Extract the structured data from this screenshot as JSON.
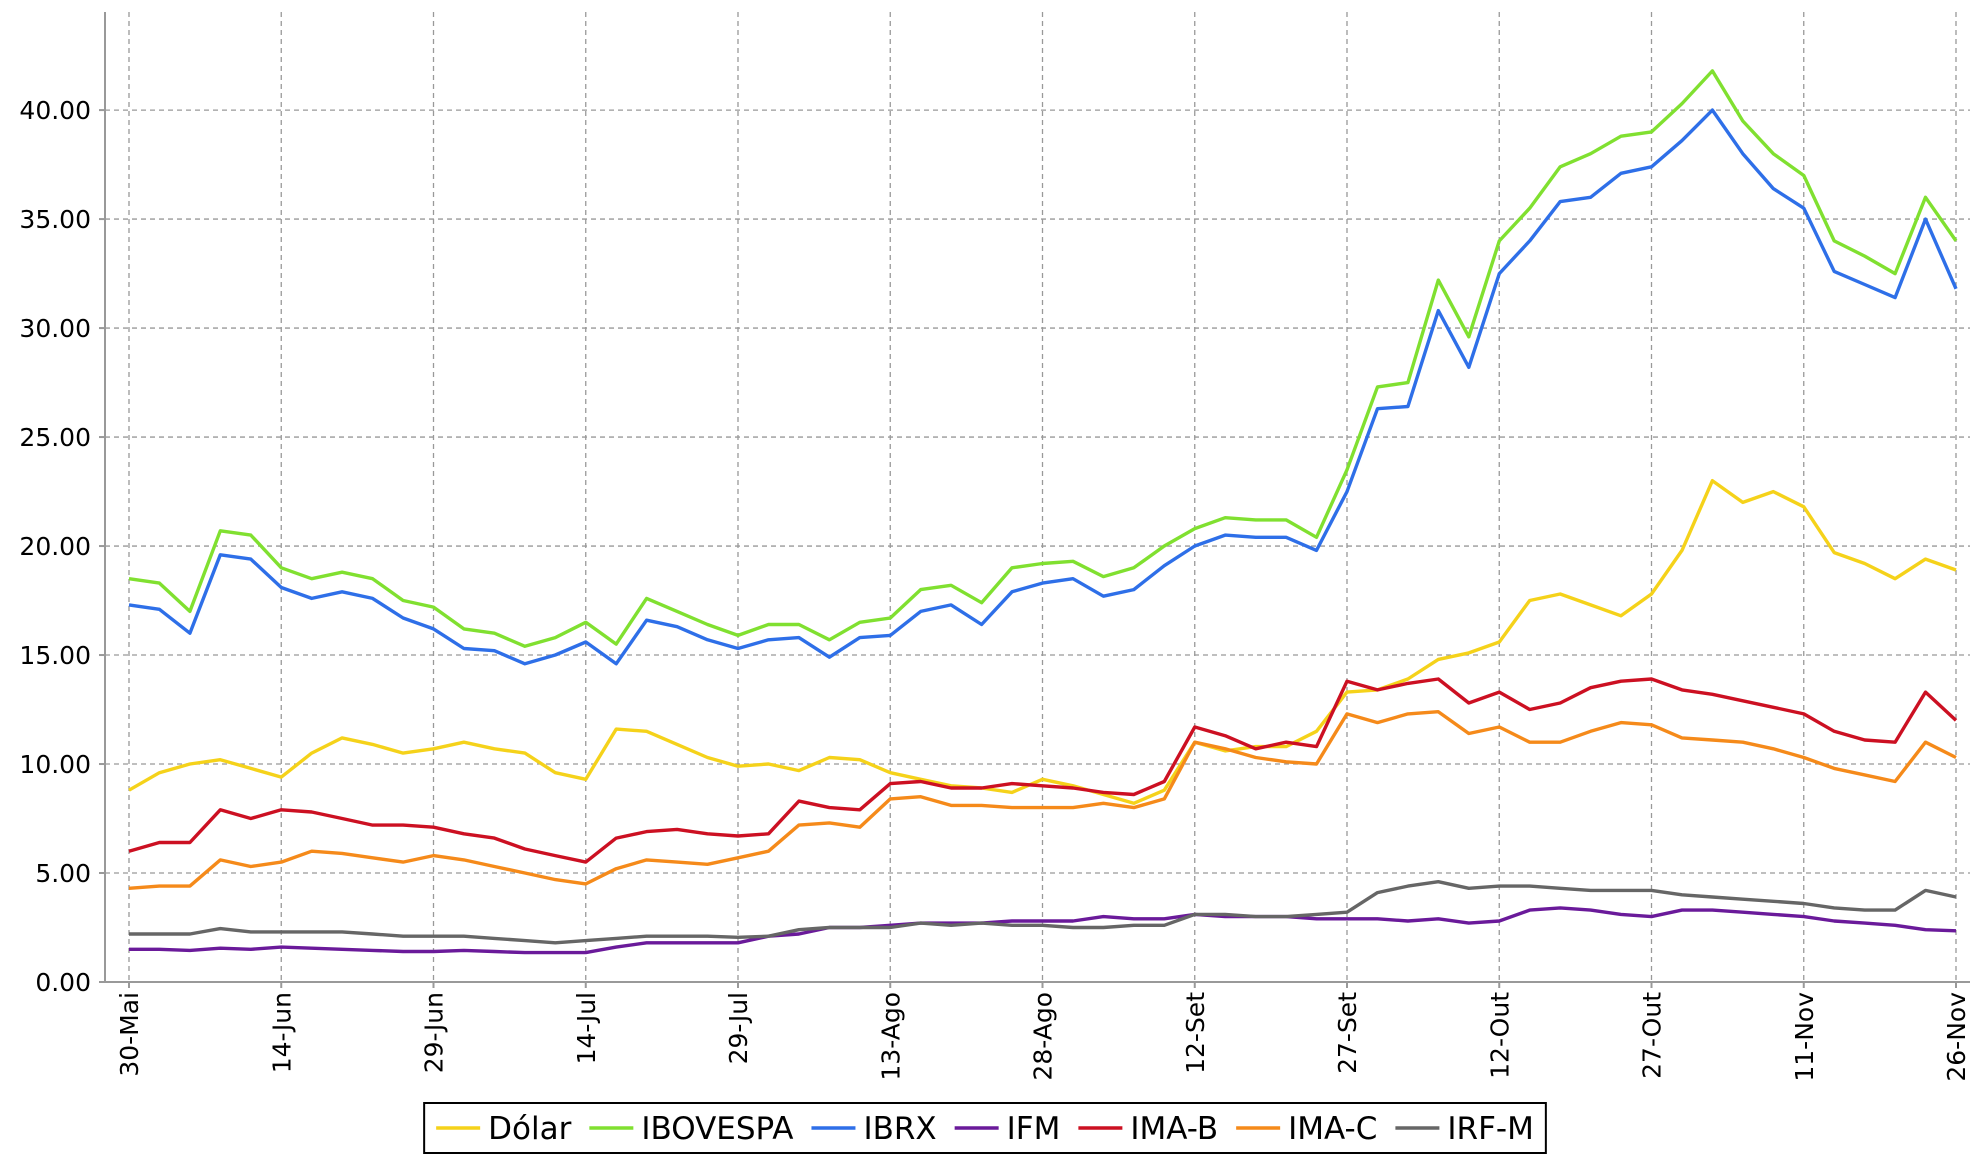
{
  "chart_data": {
    "type": "line",
    "categories": [
      "30-Mai",
      null,
      null,
      null,
      null,
      "14-Jun",
      null,
      null,
      null,
      null,
      "29-Jun",
      null,
      null,
      null,
      null,
      "14-Jul",
      null,
      null,
      null,
      null,
      "29-Jul",
      null,
      null,
      null,
      null,
      "13-Ago",
      null,
      null,
      null,
      null,
      "28-Ago",
      null,
      null,
      null,
      null,
      "12-Set",
      null,
      null,
      null,
      null,
      "27-Set",
      null,
      null,
      null,
      null,
      "12-Out",
      null,
      null,
      null,
      null,
      "27-Out",
      null,
      null,
      null,
      null,
      "11-Nov",
      null,
      null,
      null,
      null,
      "26-Nov"
    ],
    "ylim": [
      0,
      44.5
    ],
    "yticks": [
      {
        "value": 0,
        "label": "0.00"
      },
      {
        "value": 5,
        "label": "5.00"
      },
      {
        "value": 10,
        "label": "10.00"
      },
      {
        "value": 15,
        "label": "15.00"
      },
      {
        "value": 20,
        "label": "20.00"
      },
      {
        "value": 25,
        "label": "25.00"
      },
      {
        "value": 30,
        "label": "30.00"
      },
      {
        "value": 35,
        "label": "35.00"
      },
      {
        "value": 40,
        "label": "40.00"
      }
    ],
    "grid": true,
    "legend": "bottom",
    "series": [
      {
        "name": "Dólar",
        "color": "#f5d21a",
        "values": [
          8.8,
          9.6,
          10.0,
          10.2,
          9.8,
          9.4,
          10.5,
          11.2,
          10.9,
          10.5,
          10.7,
          11.0,
          10.7,
          10.5,
          9.6,
          9.3,
          11.6,
          11.5,
          10.9,
          10.3,
          9.9,
          10.0,
          9.7,
          10.3,
          10.2,
          9.6,
          9.3,
          9.0,
          8.9,
          8.7,
          9.3,
          9.0,
          8.6,
          8.2,
          8.8,
          11.0,
          10.6,
          10.8,
          10.8,
          11.5,
          13.3,
          13.4,
          13.9,
          14.8,
          15.1,
          15.6,
          17.5,
          17.8,
          17.3,
          16.8,
          17.8,
          19.8,
          23.0,
          22.0,
          22.5,
          21.8,
          19.7,
          19.2,
          18.5,
          19.4,
          18.9
        ]
      },
      {
        "name": "IBOVESPA",
        "color": "#80e030",
        "values": [
          18.5,
          18.3,
          17.0,
          20.7,
          20.5,
          19.0,
          18.5,
          18.8,
          18.5,
          17.5,
          17.2,
          16.2,
          16.0,
          15.4,
          15.8,
          16.5,
          15.5,
          17.6,
          17.0,
          16.4,
          15.9,
          16.4,
          16.4,
          15.7,
          16.5,
          16.7,
          18.0,
          18.2,
          17.4,
          19.0,
          19.2,
          19.3,
          18.6,
          19.0,
          20.0,
          20.8,
          21.3,
          21.2,
          21.2,
          20.4,
          23.5,
          27.3,
          27.5,
          32.2,
          29.6,
          34.0,
          35.5,
          37.4,
          38.0,
          38.8,
          39.0,
          40.3,
          41.8,
          39.5,
          38.0,
          37.0,
          34.0,
          33.3,
          32.5,
          36.0,
          34.0
        ]
      },
      {
        "name": "IBRX",
        "color": "#2e6fe8",
        "values": [
          17.3,
          17.1,
          16.0,
          19.6,
          19.4,
          18.1,
          17.6,
          17.9,
          17.6,
          16.7,
          16.2,
          15.3,
          15.2,
          14.6,
          15.0,
          15.6,
          14.6,
          16.6,
          16.3,
          15.7,
          15.3,
          15.7,
          15.8,
          14.9,
          15.8,
          15.9,
          17.0,
          17.3,
          16.4,
          17.9,
          18.3,
          18.5,
          17.7,
          18.0,
          19.1,
          20.0,
          20.5,
          20.4,
          20.4,
          19.8,
          22.5,
          26.3,
          26.4,
          30.8,
          28.2,
          32.5,
          34.0,
          35.8,
          36.0,
          37.1,
          37.4,
          38.6,
          40.0,
          38.0,
          36.4,
          35.5,
          32.6,
          32.0,
          31.4,
          35.0,
          31.8
        ]
      },
      {
        "name": "IFM",
        "color": "#6a1a9a",
        "values": [
          1.5,
          1.5,
          1.45,
          1.55,
          1.5,
          1.6,
          1.55,
          1.5,
          1.45,
          1.4,
          1.4,
          1.45,
          1.4,
          1.35,
          1.35,
          1.35,
          1.6,
          1.8,
          1.8,
          1.8,
          1.8,
          2.1,
          2.2,
          2.5,
          2.5,
          2.6,
          2.7,
          2.7,
          2.7,
          2.8,
          2.8,
          2.8,
          3.0,
          2.9,
          2.9,
          3.1,
          3.0,
          3.0,
          3.0,
          2.9,
          2.9,
          2.9,
          2.8,
          2.9,
          2.7,
          2.8,
          3.3,
          3.4,
          3.3,
          3.1,
          3.0,
          3.3,
          3.3,
          3.2,
          3.1,
          3.0,
          2.8,
          2.7,
          2.6,
          2.4,
          2.35
        ]
      },
      {
        "name": "IMA-B",
        "color": "#cc1022",
        "values": [
          6.0,
          6.4,
          6.4,
          7.9,
          7.5,
          7.9,
          7.8,
          7.5,
          7.2,
          7.2,
          7.1,
          6.8,
          6.6,
          6.1,
          5.8,
          5.5,
          6.6,
          6.9,
          7.0,
          6.8,
          6.7,
          6.8,
          8.3,
          8.0,
          7.9,
          9.1,
          9.2,
          8.9,
          8.9,
          9.1,
          9.0,
          8.9,
          8.7,
          8.6,
          9.2,
          11.7,
          11.3,
          10.7,
          11.0,
          10.8,
          13.8,
          13.4,
          13.7,
          13.9,
          12.8,
          13.3,
          12.5,
          12.8,
          13.5,
          13.8,
          13.9,
          13.4,
          13.2,
          12.9,
          12.6,
          12.3,
          11.5,
          11.1,
          11.0,
          13.3,
          12.0
        ]
      },
      {
        "name": "IMA-C",
        "color": "#f58a1a",
        "values": [
          4.3,
          4.4,
          4.4,
          5.6,
          5.3,
          5.5,
          6.0,
          5.9,
          5.7,
          5.5,
          5.8,
          5.6,
          5.3,
          5.0,
          4.7,
          4.5,
          5.2,
          5.6,
          5.5,
          5.4,
          5.7,
          6.0,
          7.2,
          7.3,
          7.1,
          8.4,
          8.5,
          8.1,
          8.1,
          8.0,
          8.0,
          8.0,
          8.2,
          8.0,
          8.4,
          11.0,
          10.7,
          10.3,
          10.1,
          10.0,
          12.3,
          11.9,
          12.3,
          12.4,
          11.4,
          11.7,
          11.0,
          11.0,
          11.5,
          11.9,
          11.8,
          11.2,
          11.1,
          11.0,
          10.7,
          10.3,
          9.8,
          9.5,
          9.2,
          11.0,
          10.3
        ]
      },
      {
        "name": "IRF-M",
        "color": "#666666",
        "values": [
          2.2,
          2.2,
          2.2,
          2.45,
          2.3,
          2.3,
          2.3,
          2.3,
          2.2,
          2.1,
          2.1,
          2.1,
          2.0,
          1.9,
          1.8,
          1.9,
          2.0,
          2.1,
          2.1,
          2.1,
          2.05,
          2.1,
          2.4,
          2.5,
          2.5,
          2.5,
          2.7,
          2.6,
          2.7,
          2.6,
          2.6,
          2.5,
          2.5,
          2.6,
          2.6,
          3.1,
          3.1,
          3.0,
          3.0,
          3.1,
          3.2,
          4.1,
          4.4,
          4.6,
          4.3,
          4.4,
          4.4,
          4.3,
          4.2,
          4.2,
          4.2,
          4.0,
          3.9,
          3.8,
          3.7,
          3.6,
          3.4,
          3.3,
          3.3,
          4.2,
          3.9
        ]
      }
    ]
  }
}
